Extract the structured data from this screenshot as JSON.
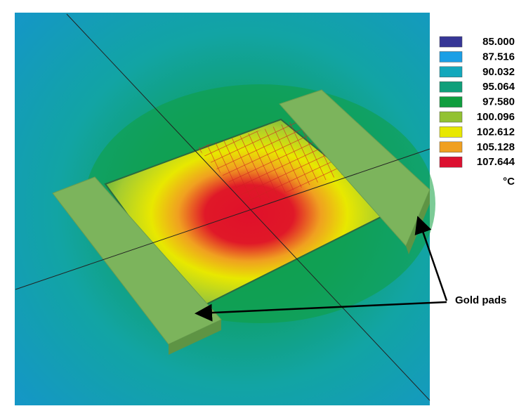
{
  "legend": {
    "items": [
      {
        "label": "85.000",
        "color": "#363696"
      },
      {
        "label": "87.516",
        "color": "#1a9fe6"
      },
      {
        "label": "90.032",
        "color": "#12a8bc"
      },
      {
        "label": "95.064",
        "color": "#0f9f7a"
      },
      {
        "label": "97.580",
        "color": "#0f9e3e"
      },
      {
        "label": "100.096",
        "color": "#92c232"
      },
      {
        "label": "102.612",
        "color": "#e8e800"
      },
      {
        "label": "105.128",
        "color": "#f0a020"
      },
      {
        "label": "107.644",
        "color": "#dc1030"
      }
    ],
    "unit": "°C"
  },
  "annotation": "Gold pads"
}
